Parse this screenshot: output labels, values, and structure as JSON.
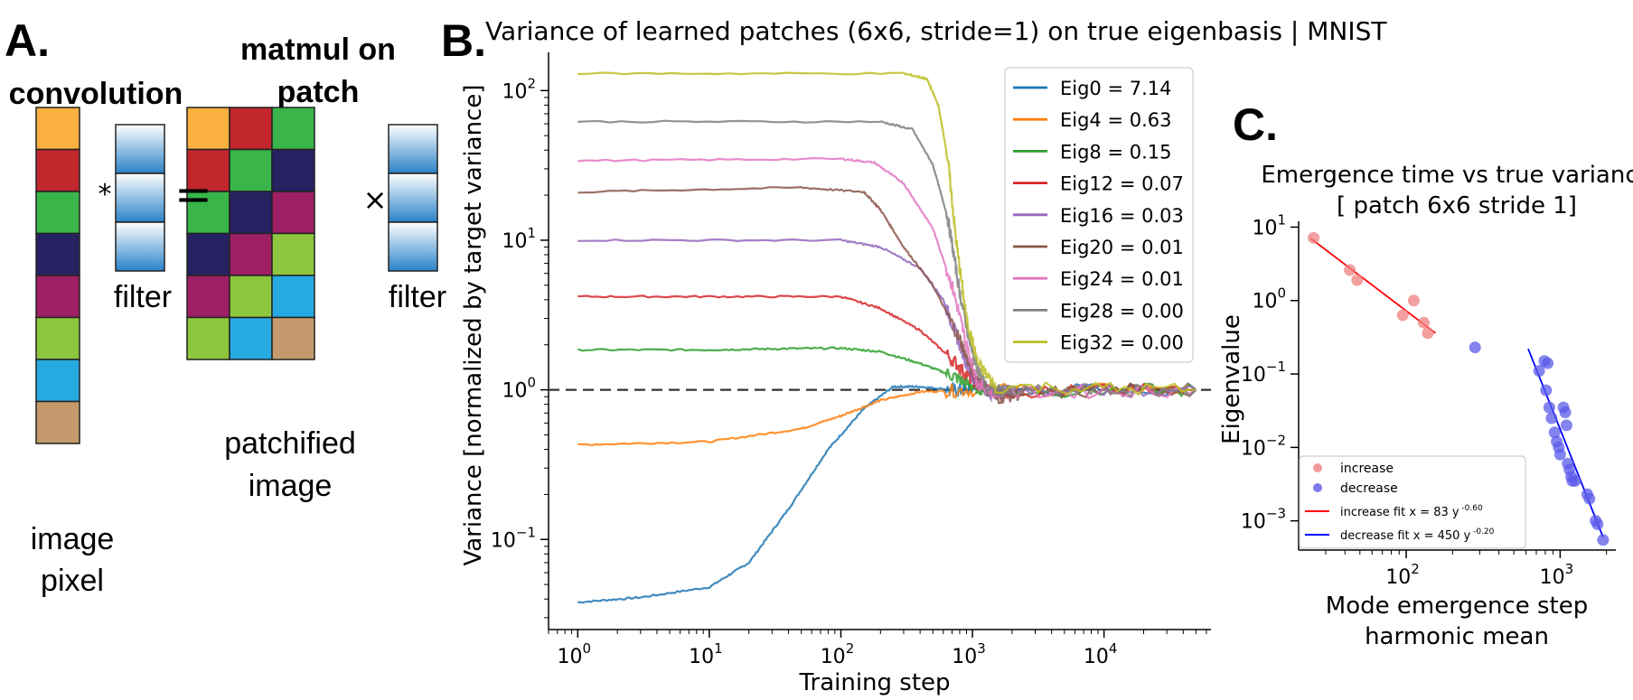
{
  "panel_a": {
    "label": "A.",
    "conv_title": "convolution",
    "matmul_title_1": "matmul on",
    "matmul_title_2": "patch",
    "conv_operator": "*",
    "equals_operator": "=",
    "times_operator": "×",
    "filter_label": "filter",
    "filter_label_2": "filter",
    "pixel_label_1": "image",
    "pixel_label_2": "pixel",
    "patch_label_1": "patchified",
    "patch_label_2": "image",
    "pixel_colors": [
      "#fbb040",
      "#c1272d",
      "#39b54a",
      "#262262",
      "#9e1f63",
      "#8dc63f",
      "#27aae1",
      "#c49a6c"
    ],
    "patch_grid_colors": [
      [
        "#fbb040",
        "#c1272d",
        "#39b54a"
      ],
      [
        "#c1272d",
        "#39b54a",
        "#262262"
      ],
      [
        "#39b54a",
        "#262262",
        "#9e1f63"
      ],
      [
        "#262262",
        "#9e1f63",
        "#8dc63f"
      ],
      [
        "#9e1f63",
        "#8dc63f",
        "#27aae1"
      ],
      [
        "#8dc63f",
        "#27aae1",
        "#c49a6c"
      ]
    ]
  },
  "panel_b": {
    "label": "B."
  },
  "panel_c": {
    "label": "C."
  },
  "chart_data": [
    {
      "type": "line",
      "title": "Variance of learned patches (6x6, stride=1) on true eigenbasis | MNIST",
      "xlabel": "Training step",
      "ylabel": "Variance [normalized by target variance]",
      "xscale": "log",
      "yscale": "log",
      "xlim": [
        0.6,
        65000
      ],
      "ylim": [
        0.025,
        180
      ],
      "xticks": [
        1,
        10,
        100,
        1000,
        10000
      ],
      "xtick_bases": [
        "10",
        "10",
        "10",
        "10",
        "10"
      ],
      "xtick_exps": [
        "0",
        "1",
        "2",
        "3",
        "4"
      ],
      "yticks": [
        0.1,
        1,
        10,
        100
      ],
      "ytick_bases": [
        "10",
        "10",
        "10",
        "10"
      ],
      "ytick_exps": [
        "−1",
        "0",
        "1",
        "2"
      ],
      "reference_line": 1.0,
      "legend_position": "top-right",
      "series": [
        {
          "name": "Eig0 = 7.14",
          "color": "#1f77b4",
          "points": [
            [
              1,
              0.038
            ],
            [
              3,
              0.041
            ],
            [
              10,
              0.048
            ],
            [
              20,
              0.07
            ],
            [
              40,
              0.16
            ],
            [
              80,
              0.4
            ],
            [
              150,
              0.75
            ],
            [
              250,
              1.05
            ],
            [
              400,
              1.05
            ],
            [
              700,
              1.0
            ],
            [
              1000,
              1.0
            ],
            [
              50000,
              1.0
            ]
          ]
        },
        {
          "name": "Eig4 = 0.63",
          "color": "#ff7f0e",
          "points": [
            [
              1,
              0.43
            ],
            [
              10,
              0.45
            ],
            [
              50,
              0.55
            ],
            [
              100,
              0.67
            ],
            [
              200,
              0.85
            ],
            [
              400,
              0.97
            ],
            [
              1000,
              1.0
            ],
            [
              50000,
              1.0
            ]
          ]
        },
        {
          "name": "Eig8 = 0.15",
          "color": "#2ca02c",
          "points": [
            [
              1,
              1.85
            ],
            [
              10,
              1.85
            ],
            [
              30,
              1.88
            ],
            [
              100,
              1.9
            ],
            [
              200,
              1.8
            ],
            [
              400,
              1.5
            ],
            [
              700,
              1.25
            ],
            [
              1000,
              1.05
            ],
            [
              1400,
              0.98
            ],
            [
              50000,
              1.0
            ]
          ]
        },
        {
          "name": "Eig12 = 0.07",
          "color": "#d62728",
          "points": [
            [
              1,
              4.2
            ],
            [
              10,
              4.2
            ],
            [
              100,
              4.2
            ],
            [
              200,
              3.5
            ],
            [
              400,
              2.5
            ],
            [
              700,
              1.6
            ],
            [
              1000,
              1.15
            ],
            [
              1500,
              0.95
            ],
            [
              2000,
              0.97
            ],
            [
              50000,
              1.0
            ]
          ]
        },
        {
          "name": "Eig16 = 0.03",
          "color": "#9467bd",
          "points": [
            [
              1,
              10
            ],
            [
              100,
              10
            ],
            [
              200,
              9
            ],
            [
              400,
              6.5
            ],
            [
              600,
              4
            ],
            [
              800,
              2
            ],
            [
              1000,
              1.2
            ],
            [
              1400,
              0.95
            ],
            [
              2000,
              0.98
            ],
            [
              50000,
              1.0
            ]
          ]
        },
        {
          "name": "Eig20 = 0.01",
          "color": "#8c564b",
          "points": [
            [
              1,
              21
            ],
            [
              50,
              22.5
            ],
            [
              150,
              21
            ],
            [
              200,
              16
            ],
            [
              300,
              9
            ],
            [
              500,
              5
            ],
            [
              800,
              2.2
            ],
            [
              1000,
              1.3
            ],
            [
              1500,
              0.88
            ],
            [
              2500,
              0.95
            ],
            [
              50000,
              1.0
            ]
          ]
        },
        {
          "name": "Eig24 = 0.01",
          "color": "#e377c2",
          "points": [
            [
              1,
              34
            ],
            [
              100,
              35
            ],
            [
              180,
              33
            ],
            [
              300,
              24
            ],
            [
              500,
              12
            ],
            [
              700,
              5
            ],
            [
              900,
              2
            ],
            [
              1100,
              1.1
            ],
            [
              1500,
              0.95
            ],
            [
              50000,
              1.0
            ]
          ]
        },
        {
          "name": "Eig28 = 0.00",
          "color": "#7f7f7f",
          "points": [
            [
              1,
              62
            ],
            [
              200,
              62
            ],
            [
              350,
              55
            ],
            [
              500,
              32
            ],
            [
              650,
              14
            ],
            [
              800,
              4.5
            ],
            [
              1000,
              1.7
            ],
            [
              1300,
              1.0
            ],
            [
              2000,
              0.97
            ],
            [
              50000,
              1.0
            ]
          ]
        },
        {
          "name": "Eig32 = 0.00",
          "color": "#bcbd22",
          "points": [
            [
              1,
              130
            ],
            [
              300,
              130
            ],
            [
              450,
              120
            ],
            [
              550,
              80
            ],
            [
              650,
              35
            ],
            [
              750,
              10
            ],
            [
              900,
              3
            ],
            [
              1100,
              1.5
            ],
            [
              1500,
              1.05
            ],
            [
              50000,
              1.0
            ]
          ]
        }
      ]
    },
    {
      "type": "scatter",
      "title": "Emergence time vs true variance",
      "subtitle": "[ patch 6x6 stride 1]",
      "xlabel": "Mode emergence step",
      "xlabel2": "harmonic mean",
      "ylabel": "Eigenvalue",
      "xscale": "log",
      "yscale": "log",
      "xlim": [
        20,
        2300
      ],
      "ylim": [
        0.0004,
        12
      ],
      "xticks": [
        100,
        1000
      ],
      "xtick_bases": [
        "10",
        "10"
      ],
      "xtick_exps": [
        "2",
        "3"
      ],
      "yticks": [
        0.001,
        0.01,
        0.1,
        1,
        10
      ],
      "ytick_bases": [
        "10",
        "10",
        "10",
        "10",
        "10"
      ],
      "ytick_exps": [
        "−3",
        "−2",
        "−1",
        "0",
        "1"
      ],
      "legend_position": "lower-left",
      "legend": {
        "increase": "increase",
        "decrease": "decrease",
        "increase_fit": "increase fit x = 83 y",
        "increase_fit_exp": "-0.60",
        "decrease_fit": "decrease fit x = 450 y",
        "decrease_fit_exp": "-0.20"
      },
      "increase": {
        "color": "#f08080",
        "x": [
          25,
          43,
          48,
          95,
          112,
          130,
          138
        ],
        "y": [
          7.14,
          2.6,
          1.9,
          0.63,
          1.0,
          0.5,
          0.36
        ]
      },
      "decrease": {
        "color": "#5b5bea",
        "x": [
          280,
          730,
          790,
          830,
          810,
          850,
          880,
          920,
          950,
          980,
          1000,
          1050,
          1080,
          1100,
          1120,
          1150,
          1180,
          1200,
          1250,
          1500,
          1550,
          1700,
          1750,
          1900
        ],
        "y": [
          0.23,
          0.11,
          0.15,
          0.14,
          0.06,
          0.035,
          0.025,
          0.016,
          0.012,
          0.01,
          0.008,
          0.035,
          0.03,
          0.02,
          0.006,
          0.005,
          0.004,
          0.0035,
          0.0035,
          0.0023,
          0.002,
          0.001,
          0.0009,
          0.00055
        ]
      },
      "increase_fit": {
        "color": "#ff0000",
        "x": [
          24,
          155
        ],
        "y": [
          7.0,
          0.36
        ]
      },
      "decrease_fit": {
        "color": "#0000ff",
        "x": [
          620,
          1900
        ],
        "y": [
          0.22,
          0.0006
        ]
      }
    }
  ]
}
